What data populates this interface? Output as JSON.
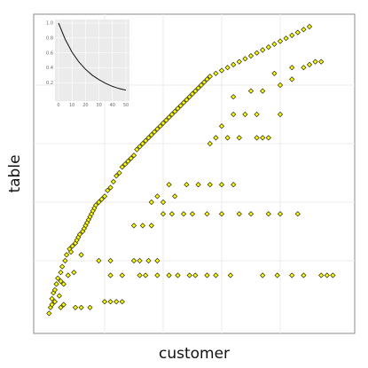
{
  "chart_data": [
    {
      "type": "scatter",
      "title": "",
      "xlabel": "customer",
      "ylabel": "table",
      "xlim": [
        0,
        1
      ],
      "ylim": [
        0,
        1
      ],
      "grid": true,
      "legend": "none",
      "colors": {
        "point_fill": "#ffff00",
        "point_stroke": "#2a2a00",
        "panel_background": "#ffffff",
        "grid": "#ebebeb",
        "border": "#888888"
      },
      "series": [
        {
          "values": [
            {
              "x": 0.01,
              "y": 0.02
            },
            {
              "x": 0.015,
              "y": 0.04
            },
            {
              "x": 0.02,
              "y": 0.05
            },
            {
              "x": 0.02,
              "y": 0.07
            },
            {
              "x": 0.025,
              "y": 0.09
            },
            {
              "x": 0.03,
              "y": 0.1
            },
            {
              "x": 0.03,
              "y": 0.06
            },
            {
              "x": 0.035,
              "y": 0.12
            },
            {
              "x": 0.04,
              "y": 0.14
            },
            {
              "x": 0.045,
              "y": 0.08
            },
            {
              "x": 0.05,
              "y": 0.13
            },
            {
              "x": 0.05,
              "y": 0.16
            },
            {
              "x": 0.055,
              "y": 0.18
            },
            {
              "x": 0.06,
              "y": 0.05
            },
            {
              "x": 0.06,
              "y": 0.12
            },
            {
              "x": 0.065,
              "y": 0.2
            },
            {
              "x": 0.07,
              "y": 0.22
            },
            {
              "x": 0.075,
              "y": 0.15
            },
            {
              "x": 0.08,
              "y": 0.24
            },
            {
              "x": 0.085,
              "y": 0.23
            },
            {
              "x": 0.09,
              "y": 0.25
            },
            {
              "x": 0.095,
              "y": 0.16
            },
            {
              "x": 0.1,
              "y": 0.26
            },
            {
              "x": 0.105,
              "y": 0.27
            },
            {
              "x": 0.11,
              "y": 0.28
            },
            {
              "x": 0.115,
              "y": 0.29
            },
            {
              "x": 0.12,
              "y": 0.22
            },
            {
              "x": 0.125,
              "y": 0.3
            },
            {
              "x": 0.13,
              "y": 0.31
            },
            {
              "x": 0.135,
              "y": 0.32
            },
            {
              "x": 0.14,
              "y": 0.33
            },
            {
              "x": 0.145,
              "y": 0.34
            },
            {
              "x": 0.15,
              "y": 0.35
            },
            {
              "x": 0.155,
              "y": 0.36
            },
            {
              "x": 0.16,
              "y": 0.37
            },
            {
              "x": 0.165,
              "y": 0.38
            },
            {
              "x": 0.17,
              "y": 0.39
            },
            {
              "x": 0.18,
              "y": 0.4
            },
            {
              "x": 0.19,
              "y": 0.41
            },
            {
              "x": 0.2,
              "y": 0.42
            },
            {
              "x": 0.21,
              "y": 0.44
            },
            {
              "x": 0.22,
              "y": 0.45
            },
            {
              "x": 0.23,
              "y": 0.47
            },
            {
              "x": 0.24,
              "y": 0.49
            },
            {
              "x": 0.25,
              "y": 0.5
            },
            {
              "x": 0.26,
              "y": 0.52
            },
            {
              "x": 0.27,
              "y": 0.53
            },
            {
              "x": 0.28,
              "y": 0.54
            },
            {
              "x": 0.29,
              "y": 0.55
            },
            {
              "x": 0.3,
              "y": 0.56
            },
            {
              "x": 0.31,
              "y": 0.58
            },
            {
              "x": 0.32,
              "y": 0.59
            },
            {
              "x": 0.33,
              "y": 0.6
            },
            {
              "x": 0.34,
              "y": 0.61
            },
            {
              "x": 0.35,
              "y": 0.62
            },
            {
              "x": 0.36,
              "y": 0.63
            },
            {
              "x": 0.37,
              "y": 0.64
            },
            {
              "x": 0.38,
              "y": 0.65
            },
            {
              "x": 0.39,
              "y": 0.66
            },
            {
              "x": 0.4,
              "y": 0.67
            },
            {
              "x": 0.41,
              "y": 0.68
            },
            {
              "x": 0.42,
              "y": 0.69
            },
            {
              "x": 0.43,
              "y": 0.7
            },
            {
              "x": 0.44,
              "y": 0.71
            },
            {
              "x": 0.45,
              "y": 0.72
            },
            {
              "x": 0.46,
              "y": 0.73
            },
            {
              "x": 0.47,
              "y": 0.74
            },
            {
              "x": 0.48,
              "y": 0.75
            },
            {
              "x": 0.49,
              "y": 0.76
            },
            {
              "x": 0.5,
              "y": 0.77
            },
            {
              "x": 0.51,
              "y": 0.78
            },
            {
              "x": 0.52,
              "y": 0.79
            },
            {
              "x": 0.53,
              "y": 0.8
            },
            {
              "x": 0.54,
              "y": 0.81
            },
            {
              "x": 0.55,
              "y": 0.82
            },
            {
              "x": 0.56,
              "y": 0.83
            },
            {
              "x": 0.58,
              "y": 0.84
            },
            {
              "x": 0.6,
              "y": 0.85
            },
            {
              "x": 0.62,
              "y": 0.86
            },
            {
              "x": 0.64,
              "y": 0.87
            },
            {
              "x": 0.66,
              "y": 0.88
            },
            {
              "x": 0.68,
              "y": 0.89
            },
            {
              "x": 0.7,
              "y": 0.9
            },
            {
              "x": 0.72,
              "y": 0.91
            },
            {
              "x": 0.74,
              "y": 0.92
            },
            {
              "x": 0.76,
              "y": 0.93
            },
            {
              "x": 0.78,
              "y": 0.94
            },
            {
              "x": 0.8,
              "y": 0.95
            },
            {
              "x": 0.82,
              "y": 0.96
            },
            {
              "x": 0.84,
              "y": 0.97
            },
            {
              "x": 0.86,
              "y": 0.98
            },
            {
              "x": 0.88,
              "y": 0.99
            },
            {
              "x": 0.9,
              "y": 1.0
            },
            {
              "x": 0.05,
              "y": 0.04
            },
            {
              "x": 0.1,
              "y": 0.04
            },
            {
              "x": 0.12,
              "y": 0.04
            },
            {
              "x": 0.15,
              "y": 0.04
            },
            {
              "x": 0.2,
              "y": 0.06
            },
            {
              "x": 0.22,
              "y": 0.06
            },
            {
              "x": 0.24,
              "y": 0.06
            },
            {
              "x": 0.26,
              "y": 0.06
            },
            {
              "x": 0.22,
              "y": 0.15
            },
            {
              "x": 0.26,
              "y": 0.15
            },
            {
              "x": 0.32,
              "y": 0.15
            },
            {
              "x": 0.34,
              "y": 0.15
            },
            {
              "x": 0.38,
              "y": 0.15
            },
            {
              "x": 0.42,
              "y": 0.15
            },
            {
              "x": 0.45,
              "y": 0.15
            },
            {
              "x": 0.49,
              "y": 0.15
            },
            {
              "x": 0.51,
              "y": 0.15
            },
            {
              "x": 0.55,
              "y": 0.15
            },
            {
              "x": 0.58,
              "y": 0.15
            },
            {
              "x": 0.63,
              "y": 0.15
            },
            {
              "x": 0.74,
              "y": 0.15
            },
            {
              "x": 0.79,
              "y": 0.15
            },
            {
              "x": 0.84,
              "y": 0.15
            },
            {
              "x": 0.88,
              "y": 0.15
            },
            {
              "x": 0.94,
              "y": 0.15
            },
            {
              "x": 0.96,
              "y": 0.15
            },
            {
              "x": 0.98,
              "y": 0.15
            },
            {
              "x": 0.18,
              "y": 0.2
            },
            {
              "x": 0.22,
              "y": 0.2
            },
            {
              "x": 0.3,
              "y": 0.2
            },
            {
              "x": 0.32,
              "y": 0.2
            },
            {
              "x": 0.35,
              "y": 0.2
            },
            {
              "x": 0.38,
              "y": 0.2
            },
            {
              "x": 0.3,
              "y": 0.32
            },
            {
              "x": 0.33,
              "y": 0.32
            },
            {
              "x": 0.36,
              "y": 0.32
            },
            {
              "x": 0.4,
              "y": 0.36
            },
            {
              "x": 0.43,
              "y": 0.36
            },
            {
              "x": 0.47,
              "y": 0.36
            },
            {
              "x": 0.5,
              "y": 0.36
            },
            {
              "x": 0.55,
              "y": 0.36
            },
            {
              "x": 0.6,
              "y": 0.36
            },
            {
              "x": 0.66,
              "y": 0.36
            },
            {
              "x": 0.7,
              "y": 0.36
            },
            {
              "x": 0.76,
              "y": 0.36
            },
            {
              "x": 0.8,
              "y": 0.36
            },
            {
              "x": 0.86,
              "y": 0.36
            },
            {
              "x": 0.36,
              "y": 0.4
            },
            {
              "x": 0.4,
              "y": 0.4
            },
            {
              "x": 0.44,
              "y": 0.42
            },
            {
              "x": 0.38,
              "y": 0.42
            },
            {
              "x": 0.42,
              "y": 0.46
            },
            {
              "x": 0.48,
              "y": 0.46
            },
            {
              "x": 0.52,
              "y": 0.46
            },
            {
              "x": 0.56,
              "y": 0.46
            },
            {
              "x": 0.6,
              "y": 0.46
            },
            {
              "x": 0.64,
              "y": 0.46
            },
            {
              "x": 0.58,
              "y": 0.62
            },
            {
              "x": 0.62,
              "y": 0.62
            },
            {
              "x": 0.66,
              "y": 0.62
            },
            {
              "x": 0.72,
              "y": 0.62
            },
            {
              "x": 0.74,
              "y": 0.62
            },
            {
              "x": 0.76,
              "y": 0.62
            },
            {
              "x": 0.56,
              "y": 0.6
            },
            {
              "x": 0.6,
              "y": 0.66
            },
            {
              "x": 0.64,
              "y": 0.7
            },
            {
              "x": 0.68,
              "y": 0.7
            },
            {
              "x": 0.72,
              "y": 0.7
            },
            {
              "x": 0.8,
              "y": 0.7
            },
            {
              "x": 0.64,
              "y": 0.76
            },
            {
              "x": 0.7,
              "y": 0.78
            },
            {
              "x": 0.74,
              "y": 0.78
            },
            {
              "x": 0.8,
              "y": 0.8
            },
            {
              "x": 0.84,
              "y": 0.82
            },
            {
              "x": 0.78,
              "y": 0.84
            },
            {
              "x": 0.84,
              "y": 0.86
            },
            {
              "x": 0.88,
              "y": 0.86
            },
            {
              "x": 0.9,
              "y": 0.87
            },
            {
              "x": 0.92,
              "y": 0.88
            },
            {
              "x": 0.94,
              "y": 0.88
            }
          ]
        }
      ]
    },
    {
      "type": "line",
      "title": "",
      "xlabel": "",
      "ylabel": "",
      "xlim": [
        0,
        50
      ],
      "ylim": [
        0,
        1
      ],
      "grid": true,
      "legend": "none",
      "placement": "top-left inset",
      "x_ticks": [
        "0",
        "10",
        "20",
        "30",
        "40",
        "50"
      ],
      "y_ticks": [
        "0.2",
        "0.4",
        "0.6",
        "0.8",
        "1.0"
      ],
      "colors": {
        "panel_background": "#ebebeb",
        "grid": "#ffffff",
        "line": "#111111"
      },
      "series": [
        {
          "x": [
            0,
            5,
            10,
            15,
            20,
            25,
            30,
            35,
            40,
            45,
            50
          ],
          "values": [
            1.0,
            0.78,
            0.61,
            0.48,
            0.38,
            0.3,
            0.24,
            0.19,
            0.15,
            0.12,
            0.1
          ]
        }
      ]
    }
  ]
}
